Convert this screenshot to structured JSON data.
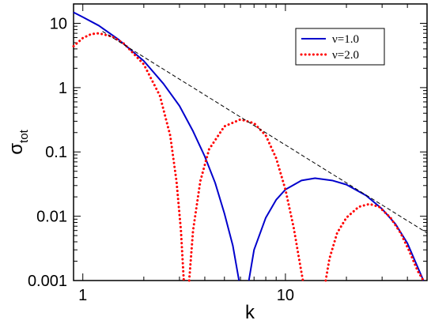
{
  "chart_data": {
    "type": "line",
    "title": "",
    "xlabel": "k",
    "ylabel": "σ",
    "ylabel_subscript": "tot",
    "x_scale": "log",
    "y_scale": "log",
    "xlim": [
      0.9,
      50
    ],
    "ylim": [
      0.001,
      20
    ],
    "grid": false,
    "legend_position": "top-right",
    "x_ticks": [
      {
        "value": 1,
        "label": "1"
      },
      {
        "value": 10,
        "label": "10"
      }
    ],
    "y_ticks": [
      {
        "value": 0.001,
        "label": "0.001"
      },
      {
        "value": 0.01,
        "label": "0.01"
      },
      {
        "value": 0.1,
        "label": "0.1"
      },
      {
        "value": 1,
        "label": "1"
      },
      {
        "value": 10,
        "label": "10"
      }
    ],
    "series": [
      {
        "name": "ν=1.0",
        "color": "#0000cc",
        "style": "solid",
        "points": [
          [
            0.9,
            14.8
          ],
          [
            1.0,
            12.5
          ],
          [
            1.2,
            9.2
          ],
          [
            1.5,
            5.6
          ],
          [
            2.0,
            2.6
          ],
          [
            2.5,
            1.15
          ],
          [
            3.0,
            0.52
          ],
          [
            3.5,
            0.21
          ],
          [
            4.0,
            0.085
          ],
          [
            4.5,
            0.033
          ],
          [
            5.0,
            0.011
          ],
          [
            5.5,
            0.0035
          ],
          [
            5.9,
            0.001
          ]
        ]
      },
      {
        "name": "ν=1.0",
        "color": "#0000cc",
        "style": "solid",
        "points": [
          [
            6.6,
            0.001
          ],
          [
            7.0,
            0.003
          ],
          [
            8.0,
            0.0095
          ],
          [
            9.0,
            0.018
          ],
          [
            10.0,
            0.026
          ],
          [
            12.0,
            0.036
          ],
          [
            14.0,
            0.039
          ],
          [
            17.0,
            0.036
          ],
          [
            20.0,
            0.031
          ],
          [
            25.0,
            0.021
          ],
          [
            30.0,
            0.013
          ],
          [
            35.0,
            0.0075
          ],
          [
            40.0,
            0.0038
          ],
          [
            45.0,
            0.0016
          ],
          [
            48.0,
            0.001
          ]
        ]
      },
      {
        "name": "ν=2.0",
        "color": "#ff0000",
        "style": "dotted",
        "points": [
          [
            0.9,
            4.4
          ],
          [
            1.0,
            5.9
          ],
          [
            1.1,
            6.8
          ],
          [
            1.2,
            7.0
          ],
          [
            1.4,
            6.2
          ],
          [
            1.6,
            4.8
          ],
          [
            2.0,
            2.3
          ],
          [
            2.4,
            0.75
          ],
          [
            2.7,
            0.18
          ],
          [
            2.9,
            0.035
          ],
          [
            3.05,
            0.006
          ],
          [
            3.15,
            0.001
          ]
        ]
      },
      {
        "name": "ν=2.0",
        "color": "#ff0000",
        "style": "dotted",
        "points": [
          [
            3.35,
            0.001
          ],
          [
            3.5,
            0.006
          ],
          [
            3.8,
            0.035
          ],
          [
            4.2,
            0.11
          ],
          [
            5.0,
            0.25
          ],
          [
            6.0,
            0.32
          ],
          [
            7.0,
            0.28
          ],
          [
            8.0,
            0.18
          ],
          [
            9.0,
            0.08
          ],
          [
            10.0,
            0.026
          ],
          [
            11.0,
            0.0065
          ],
          [
            11.8,
            0.0018
          ],
          [
            12.2,
            0.001
          ]
        ]
      },
      {
        "name": "ν=2.0",
        "color": "#ff0000",
        "style": "dotted",
        "points": [
          [
            15.8,
            0.001
          ],
          [
            16.5,
            0.0022
          ],
          [
            18.0,
            0.0055
          ],
          [
            20.0,
            0.0095
          ],
          [
            23.0,
            0.014
          ],
          [
            26.0,
            0.0155
          ],
          [
            29.0,
            0.014
          ],
          [
            33.0,
            0.0095
          ],
          [
            37.0,
            0.0055
          ],
          [
            41.0,
            0.0028
          ],
          [
            45.0,
            0.0014
          ],
          [
            48.0,
            0.001
          ]
        ]
      },
      {
        "name": "",
        "color": "#000000",
        "style": "dashed",
        "points": [
          [
            1.25,
            7.5
          ],
          [
            50,
            0.0055
          ]
        ]
      }
    ],
    "legend": [
      {
        "label": "ν=1.0",
        "color": "#0000cc",
        "style": "solid"
      },
      {
        "label": "ν=2.0",
        "color": "#ff0000",
        "style": "dotted"
      }
    ]
  }
}
